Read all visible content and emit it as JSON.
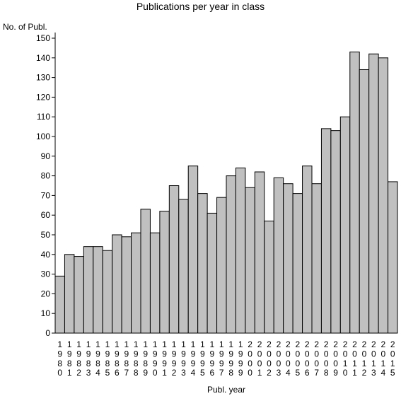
{
  "chart_data": {
    "type": "bar",
    "title": "Publications per year in class",
    "ylabel": "No. of Publ.",
    "xlabel": "Publ. year",
    "ylim": [
      0,
      150
    ],
    "yticks": [
      0,
      10,
      20,
      30,
      40,
      50,
      60,
      70,
      80,
      90,
      100,
      110,
      120,
      130,
      140,
      150
    ],
    "grid": false,
    "legend": "none",
    "bar_color": "#c0c0c0",
    "categories": [
      "1980",
      "1981",
      "1982",
      "1983",
      "1984",
      "1985",
      "1986",
      "1987",
      "1988",
      "1989",
      "1990",
      "1991",
      "1992",
      "1993",
      "1994",
      "1995",
      "1996",
      "1997",
      "1998",
      "1999",
      "2000",
      "2001",
      "2002",
      "2003",
      "2004",
      "2005",
      "2006",
      "2007",
      "2008",
      "2009",
      "2010",
      "2011",
      "2012",
      "2013",
      "2014",
      "2015"
    ],
    "values": [
      29,
      40,
      39,
      44,
      44,
      42,
      50,
      49,
      51,
      63,
      51,
      62,
      75,
      68,
      85,
      71,
      61,
      69,
      80,
      84,
      74,
      82,
      57,
      79,
      76,
      71,
      85,
      76,
      104,
      103,
      110,
      143,
      134,
      142,
      140,
      77
    ]
  }
}
